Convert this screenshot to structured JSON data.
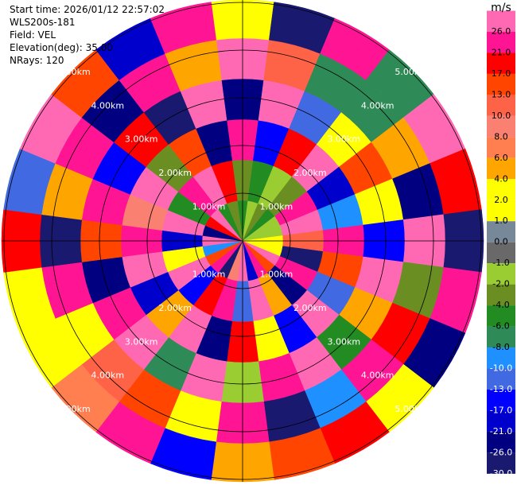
{
  "chart_data": {
    "type": "ppi",
    "header": [
      "Start time: 2026/01/12 22:57:02",
      "WLS200s-181",
      "Field: VEL",
      "Elevation(deg): 35.00",
      "NRays: 120"
    ],
    "unit": "m/s",
    "azimuth": [
      0,
      15,
      30,
      45,
      60,
      75,
      90,
      105,
      120,
      135,
      150,
      165,
      180,
      195,
      210,
      225,
      240,
      255,
      270,
      285,
      300,
      315,
      330,
      345
    ],
    "gates": [
      0,
      0.85,
      1.7,
      2.55,
      3.4,
      4.25,
      5.05
    ],
    "rlim": [
      0,
      5.05
    ],
    "rings": [
      {
        "value": 1,
        "label": "1.00km"
      },
      {
        "value": 2,
        "label": "2.00km"
      },
      {
        "value": 3,
        "label": "3.00km"
      },
      {
        "value": 4,
        "label": "4.00km"
      },
      {
        "value": 5,
        "label": "5.00km"
      }
    ],
    "values": [
      [
        -5,
        -3,
        23,
        -24,
        28,
        3
      ],
      [
        -1.5,
        -5,
        -15,
        28,
        11,
        -28
      ],
      [
        -3,
        -1.5,
        19,
        -11,
        -7,
        23
      ],
      [
        -5,
        -3,
        28,
        3,
        -7,
        -7
      ],
      [
        -1.5,
        23,
        -19,
        15,
        5,
        28
      ],
      [
        -1.5,
        28,
        -9,
        3,
        -24,
        19
      ],
      [
        3,
        11,
        23,
        -15,
        28,
        -28
      ],
      [
        3,
        -28,
        15,
        28,
        -3,
        23
      ],
      [
        28,
        23,
        -11,
        5,
        19,
        -24
      ],
      [
        15,
        -24,
        28,
        -5,
        23,
        3
      ],
      [
        23,
        5,
        -15,
        28,
        -9,
        19
      ],
      [
        -19,
        28,
        3,
        23,
        -28,
        15
      ],
      [
        28,
        -11,
        19,
        -1.5,
        23,
        5
      ],
      [
        9,
        23,
        -24,
        28,
        3,
        -15
      ],
      [
        -28,
        19,
        28,
        -7,
        15,
        23
      ],
      [
        23,
        -15,
        5,
        28,
        11,
        7
      ],
      [
        15,
        28,
        -19,
        23,
        3,
        3
      ],
      [
        -9,
        3,
        28,
        -24,
        23,
        3
      ],
      [
        28,
        -19,
        23,
        15,
        -28,
        19
      ],
      [
        -24,
        28,
        9,
        23,
        5,
        -11
      ],
      [
        19,
        -5,
        28,
        -15,
        23,
        28
      ],
      [
        28,
        23,
        -3,
        19,
        -24,
        15
      ],
      [
        -5,
        28,
        15,
        -28,
        23,
        -19
      ],
      [
        -3,
        19,
        -24,
        28,
        5,
        23
      ]
    ],
    "levels": [
      {
        "value": 26,
        "label": "26.0"
      },
      {
        "value": 21,
        "label": "21.0"
      },
      {
        "value": 17,
        "label": "17.0"
      },
      {
        "value": 13,
        "label": "13.0"
      },
      {
        "value": 10,
        "label": "10.0"
      },
      {
        "value": 8,
        "label": "8.0"
      },
      {
        "value": 6,
        "label": "6.0"
      },
      {
        "value": 4,
        "label": "4.0"
      },
      {
        "value": 2,
        "label": "2.0"
      },
      {
        "value": 1,
        "label": "1.0"
      },
      {
        "value": 0,
        "label": "0.0"
      },
      {
        "value": -1,
        "label": "-1.0"
      },
      {
        "value": -2,
        "label": "-2.0"
      },
      {
        "value": -4,
        "label": "-4.0"
      },
      {
        "value": -6,
        "label": "-6.0"
      },
      {
        "value": -8,
        "label": "-8.0"
      },
      {
        "value": -10,
        "label": "-10.0"
      },
      {
        "value": -13,
        "label": "-13.0"
      },
      {
        "value": -17,
        "label": "-17.0"
      },
      {
        "value": -21,
        "label": "-21.0"
      },
      {
        "value": -26,
        "label": "-26.0"
      },
      {
        "value": -30,
        "label": "-30.0"
      }
    ],
    "colors": [
      "#ff69b4",
      "#ff1493",
      "#ff0000",
      "#ff4500",
      "#ff6347",
      "#fa8072",
      "#ff7f50",
      "#ffa500",
      "#ffff00",
      "#ffff00",
      "#778899",
      "#696969",
      "#9acd32",
      "#6b8e23",
      "#228b22",
      "#2e8b57",
      "#1e90ff",
      "#4169e1",
      "#0000ff",
      "#0000cd",
      "#000080",
      "#191970"
    ]
  }
}
